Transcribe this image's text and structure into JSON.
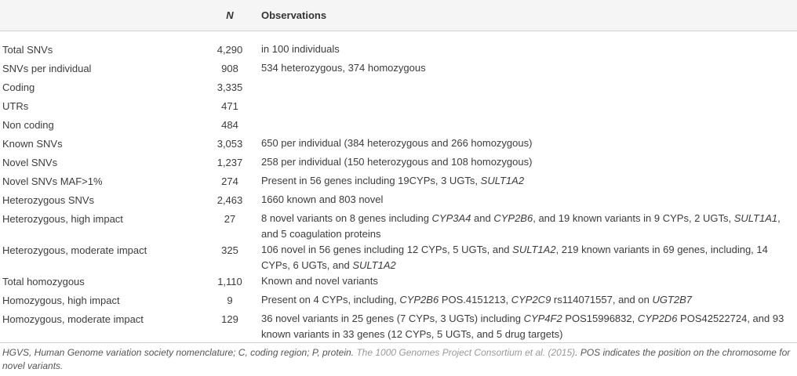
{
  "header": {
    "col_n": "N",
    "col_obs": "Observations"
  },
  "rows": [
    {
      "label": "Total SNVs",
      "n": "4,290",
      "obs": [
        {
          "t": "in 100 individuals"
        }
      ]
    },
    {
      "label": "SNVs per individual",
      "n": "908",
      "obs": [
        {
          "t": "534 heterozygous, 374 homozygous"
        }
      ]
    },
    {
      "label": "Coding",
      "n": "3,335",
      "obs": []
    },
    {
      "label": "UTRs",
      "n": "471",
      "obs": []
    },
    {
      "label": "Non coding",
      "n": "484",
      "obs": []
    },
    {
      "label": "Known SNVs",
      "n": "3,053",
      "obs": [
        {
          "t": "650 per individual (384 heterozygous and 266 homozygous)"
        }
      ]
    },
    {
      "label": "Novel SNVs",
      "n": "1,237",
      "obs": [
        {
          "t": "258 per individual (150 heterozygous and 108 homozygous)"
        }
      ]
    },
    {
      "label": "Novel SNVs MAF>1%",
      "n": "274",
      "obs": [
        {
          "t": "Present in 56 genes including 19CYPs, 3 UGTs, "
        },
        {
          "t": "SULT1A2",
          "i": true
        }
      ]
    },
    {
      "label": "Heterozygous SNVs",
      "n": "2,463",
      "obs": [
        {
          "t": "1660 known and 803 novel"
        }
      ]
    },
    {
      "label": "Heterozygous, high impact",
      "n": "27",
      "obs": [
        {
          "t": "8 novel variants on 8 genes including "
        },
        {
          "t": "CYP3A4",
          "i": true
        },
        {
          "t": " and "
        },
        {
          "t": "CYP2B6",
          "i": true
        },
        {
          "t": ", and 19 known variants in 9 CYPs, 2 UGTs, "
        },
        {
          "t": "SULT1A1",
          "i": true
        },
        {
          "t": ", and 5 coagulation proteins"
        }
      ]
    },
    {
      "label": "Heterozygous, moderate impact",
      "n": "325",
      "obs": [
        {
          "t": "106 novel in 56 genes including 12 CYPs, 5 UGTs, and "
        },
        {
          "t": "SULT1A2",
          "i": true
        },
        {
          "t": ", 219 known variants in 69 genes, including, 14 CYPs, 6 UGTs, and "
        },
        {
          "t": "SULT1A2",
          "i": true
        }
      ]
    },
    {
      "label": "Total homozygous",
      "n": "1,110",
      "obs": [
        {
          "t": "Known and novel variants"
        }
      ]
    },
    {
      "label": "Homozygous, high impact",
      "n": "9",
      "obs": [
        {
          "t": "Present on 4 CYPs, including, "
        },
        {
          "t": "CYP2B6",
          "i": true
        },
        {
          "t": " POS.4151213, "
        },
        {
          "t": "CYP2C9",
          "i": true
        },
        {
          "t": " rs114071557, and on "
        },
        {
          "t": "UGT2B7",
          "i": true
        }
      ]
    },
    {
      "label": "Homozygous, moderate impact",
      "n": "129",
      "obs": [
        {
          "t": "36 novel variants in 25 genes (7 CYPs, 3 UGTs) including "
        },
        {
          "t": "CYP4F2",
          "i": true
        },
        {
          "t": " POS15996832, "
        },
        {
          "t": "CYP2D6",
          "i": true
        },
        {
          "t": " POS42522724, and 93 known variants in 33 genes (12 CYPs, 5 UGTs, and 5 drug targets)"
        }
      ]
    }
  ],
  "footnote": {
    "part1": "HGVS, Human Genome variation society nomenclature; C, coding region; P, protein. ",
    "ref": "The 1000 Genomes Project Consortium et al. (2015)",
    "part2": ". POS indicates the position on the chromosome for novel variants."
  }
}
